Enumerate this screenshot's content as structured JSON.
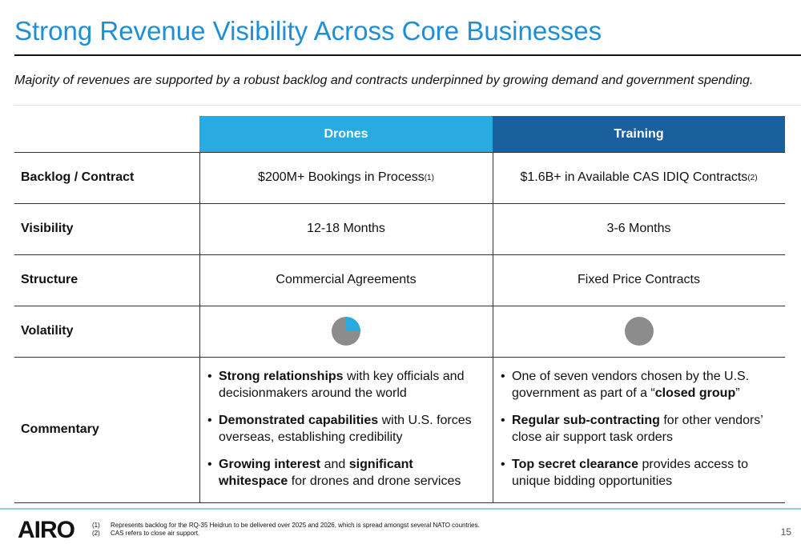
{
  "title": "Strong Revenue Visibility Across Core Businesses",
  "subtitle": "Majority of revenues are supported by a robust backlog and contracts underpinned by growing demand and government spending.",
  "table": {
    "columns": [
      {
        "text": "Drones",
        "color": "#29abe2"
      },
      {
        "text": "Training",
        "color": "#1a5f9e"
      }
    ],
    "rows": [
      {
        "label": "Backlog / Contract",
        "cells": [
          {
            "text": "$200M+ Bookings in Process",
            "note": "(1)"
          },
          {
            "text": "$1.6B+ in Available CAS IDIQ Contracts",
            "note": "(2)"
          }
        ]
      },
      {
        "label": "Visibility",
        "cells": [
          {
            "text": "12-18 Months"
          },
          {
            "text": "3-6 Months"
          }
        ]
      },
      {
        "label": "Structure",
        "cells": [
          {
            "text": "Commercial Agreements"
          },
          {
            "text": "Fixed Price Contracts"
          }
        ]
      },
      {
        "label": "Volatility",
        "cells": [
          {
            "fill": 25,
            "color": "#29abe2"
          },
          {
            "fill": 0,
            "color": "#29abe2"
          }
        ]
      },
      {
        "label": "Commentary",
        "cells": [
          {
            "bullets": [
              [
                {
                  "text": "Strong relationships",
                  "bold": true
                },
                {
                  "text": " with key officials and decisionmakers around the world"
                }
              ],
              [
                {
                  "text": "Demonstrated capabilities",
                  "bold": true
                },
                {
                  "text": " with U.S. forces overseas, establishing credibility"
                }
              ],
              [
                {
                  "text": "Growing interest",
                  "bold": true
                },
                {
                  "text": " and "
                },
                {
                  "text": "significant whitespace",
                  "bold": true
                },
                {
                  "text": " for drones and drone services"
                }
              ]
            ]
          },
          {
            "bullets": [
              [
                {
                  "text": "One of seven vendors chosen by the U.S. government as part of a “"
                },
                {
                  "text": "closed group",
                  "bold": true
                },
                {
                  "text": "”"
                }
              ],
              [
                {
                  "text": "Regular sub-contracting",
                  "bold": true
                },
                {
                  "text": " for other vendors’ close air support task orders"
                }
              ],
              [
                {
                  "text": "Top secret clearance",
                  "bold": true
                },
                {
                  "text": " provides access to unique bidding opportunities"
                }
              ]
            ]
          }
        ]
      }
    ]
  },
  "footer": {
    "logo": "AIRO",
    "notes": [
      {
        "num": "(1)",
        "text": "Represents backlog for the RQ-35 Heidrun to be delivered over 2025 and 2026, which is spread amongst several NATO countries."
      },
      {
        "num": "(2)",
        "text": "CAS refers to close air support."
      }
    ],
    "page": "15"
  }
}
